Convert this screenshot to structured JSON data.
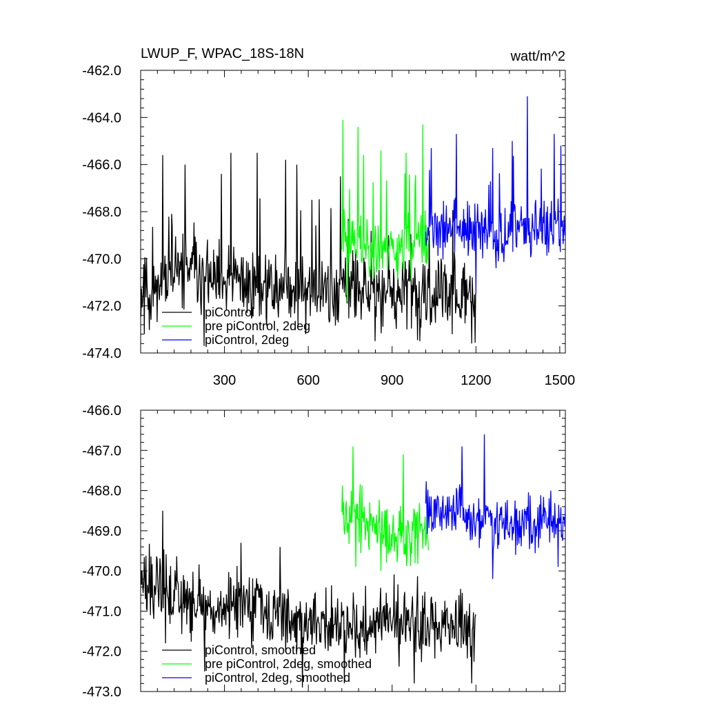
{
  "chart_data": [
    {
      "type": "line",
      "title": "LWUP_F, WPAC_18S-18N",
      "units": "watt/m^2",
      "xlim": [
        0,
        1520
      ],
      "ylim": [
        -474,
        -462
      ],
      "yticks": [
        -474,
        -472,
        -470,
        -468,
        -466,
        -464,
        -462
      ],
      "ytick_labels": [
        "-474.0",
        "-472.0",
        "-470.0",
        "-468.0",
        "-466.0",
        "-464.0",
        "-462.0"
      ],
      "xticks": [
        300,
        600,
        900,
        1200,
        1500
      ],
      "xtick_labels": [
        "300",
        "600",
        "900",
        "1200",
        "1500"
      ],
      "legend": {
        "position": "bottom-left"
      },
      "series": [
        {
          "name": "piControl",
          "color": "#000000",
          "x_start": 1,
          "x_end": 1200,
          "base": [
            -471.5,
            -470.8,
            -470.5,
            -471.2,
            -471.0,
            -471.3,
            -471.2,
            -471.4,
            -471.3,
            -471.5,
            -471.6,
            -471.7,
            -471.5,
            -471.6
          ],
          "spread": 0.95,
          "spike_max": 5.6,
          "spikes": [
            [
              13,
              -473.2
            ],
            [
              80,
              -465.6
            ],
            [
              160,
              -466.0
            ],
            [
              227,
              -473.7
            ],
            [
              290,
              -466.4
            ],
            [
              323,
              -465.5
            ],
            [
              418,
              -465.5
            ],
            [
              520,
              -465.8
            ],
            [
              560,
              -466.0
            ],
            [
              592,
              -473.2
            ],
            [
              715,
              -466.5
            ],
            [
              840,
              -473.5
            ],
            [
              1000,
              -473.5
            ],
            [
              1185,
              -473.6
            ]
          ],
          "seed": 11
        },
        {
          "name": "pre piControl, 2deg",
          "color": "#00ff00",
          "x_start": 720,
          "x_end": 1030,
          "base": [
            -469.2,
            -469.3,
            -469.6,
            -469.5,
            -469.3,
            -469.4
          ],
          "spread": 0.8,
          "spike_max": 4.5,
          "spikes": [
            [
              724,
              -464.1
            ],
            [
              778,
              -464.4
            ],
            [
              799,
              -465.6
            ],
            [
              860,
              -465.4
            ],
            [
              950,
              -465.5
            ],
            [
              1010,
              -464.3
            ],
            [
              740,
              -471.8
            ]
          ],
          "seed": 23
        },
        {
          "name": "piControl, 2deg",
          "color": "#0000ff",
          "x_start": 1020,
          "x_end": 1520,
          "base": [
            -469.0,
            -468.7,
            -468.9,
            -469.0,
            -468.8,
            -468.9
          ],
          "spread": 0.75,
          "spike_max": 4.8,
          "spikes": [
            [
              1040,
              -465.3
            ],
            [
              1130,
              -464.7
            ],
            [
              1200,
              -464.5
            ],
            [
              1260,
              -465.3
            ],
            [
              1330,
              -465.0
            ],
            [
              1385,
              -463.1
            ],
            [
              1480,
              -464.7
            ],
            [
              1505,
              -465.2
            ],
            [
              1200,
              -471.5
            ]
          ],
          "seed": 37
        }
      ]
    },
    {
      "type": "line",
      "xlim": [
        0,
        1520
      ],
      "ylim": [
        -473,
        -466
      ],
      "yticks": [
        -473,
        -472,
        -471,
        -470,
        -469,
        -468,
        -467,
        -466
      ],
      "ytick_labels": [
        "-473.0",
        "-472.0",
        "-471.0",
        "-470.0",
        "-469.0",
        "-468.0",
        "-467.0",
        "-466.0"
      ],
      "xticks": [
        300,
        600,
        900,
        1200,
        1500
      ],
      "legend": {
        "position": "bottom-left"
      },
      "series": [
        {
          "name": "piControl, smoothed",
          "color": "#000000",
          "x_start": 1,
          "x_end": 1200,
          "base": [
            -470.3,
            -470.7,
            -471.0,
            -470.9,
            -471.2,
            -471.3,
            -471.4,
            -471.3,
            -471.5,
            -471.4
          ],
          "spread": 0.5,
          "spike_max": 1.8,
          "spikes": [
            [
              80,
              -468.5
            ],
            [
              90,
              -471.8
            ],
            [
              230,
              -472.5
            ],
            [
              360,
              -469.3
            ],
            [
              500,
              -469.4
            ],
            [
              580,
              -472.9
            ],
            [
              730,
              -472.8
            ],
            [
              980,
              -472.8
            ],
            [
              1185,
              -472.8
            ]
          ],
          "seed": 51
        },
        {
          "name": "pre piControl, 2deg, smoothed",
          "color": "#00ff00",
          "x_start": 720,
          "x_end": 1030,
          "base": [
            -468.4,
            -468.8,
            -469.0,
            -469.1,
            -469.0
          ],
          "spread": 0.45,
          "spike_max": 1.3,
          "spikes": [
            [
              760,
              -466.9
            ],
            [
              940,
              -467.1
            ],
            [
              860,
              -470.0
            ],
            [
              770,
              -469.9
            ]
          ],
          "seed": 67
        },
        {
          "name": "piControl, 2deg, smoothed",
          "color": "#0000ff",
          "x_start": 1020,
          "x_end": 1520,
          "base": [
            -468.4,
            -468.6,
            -468.7,
            -468.9,
            -468.8,
            -468.7
          ],
          "spread": 0.4,
          "spike_max": 1.3,
          "spikes": [
            [
              1150,
              -466.9
            ],
            [
              1230,
              -466.6
            ],
            [
              1260,
              -470.2
            ],
            [
              1495,
              -469.9
            ]
          ],
          "seed": 79
        }
      ]
    }
  ]
}
